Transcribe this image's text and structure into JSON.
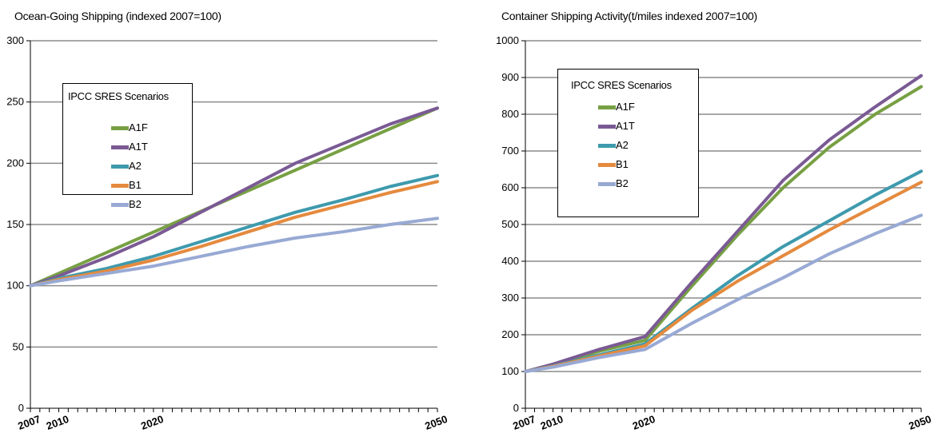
{
  "colors": {
    "A1F": "#77a043",
    "A1T": "#7a5a94",
    "A2": "#3e9aad",
    "B1": "#e58a3e",
    "B2": "#98a9d4"
  },
  "legend": {
    "title": "IPCC SRES Scenarios",
    "items": [
      "A1F",
      "A1T",
      "A2",
      "B1",
      "B2"
    ]
  },
  "chart_data": [
    {
      "type": "line",
      "title": "Ocean-Going Shipping (indexed 2007=100)",
      "xlabel": "",
      "ylabel": "",
      "xlim": [
        2007,
        2050
      ],
      "ylim": [
        0,
        300
      ],
      "yticks": [
        0,
        50,
        100,
        150,
        200,
        250,
        300
      ],
      "xtick_labels": [
        2007,
        2010,
        2020,
        2050
      ],
      "grid": true,
      "legend_position": "top-left",
      "series": [
        {
          "name": "A1F",
          "x": [
            2007,
            2050
          ],
          "y": [
            100,
            245
          ]
        },
        {
          "name": "A1T",
          "x": [
            2007,
            2010,
            2015,
            2020,
            2025,
            2030,
            2035,
            2040,
            2045,
            2050
          ],
          "y": [
            100,
            108,
            123,
            140,
            160,
            180,
            200,
            216,
            232,
            245
          ]
        },
        {
          "name": "A2",
          "x": [
            2007,
            2010,
            2015,
            2020,
            2025,
            2030,
            2035,
            2040,
            2045,
            2050
          ],
          "y": [
            100,
            106,
            114,
            124,
            136,
            148,
            160,
            170,
            181,
            190
          ]
        },
        {
          "name": "B1",
          "x": [
            2007,
            2010,
            2015,
            2020,
            2025,
            2030,
            2035,
            2040,
            2045,
            2050
          ],
          "y": [
            100,
            105,
            112,
            121,
            132,
            144,
            156,
            166,
            176,
            185
          ]
        },
        {
          "name": "B2",
          "x": [
            2007,
            2010,
            2015,
            2020,
            2025,
            2030,
            2035,
            2040,
            2045,
            2050
          ],
          "y": [
            100,
            104,
            110,
            116,
            124,
            132,
            139,
            144,
            150,
            155
          ]
        }
      ]
    },
    {
      "type": "line",
      "title": "Container Shipping Activity(t/miles indexed 2007=100)",
      "xlabel": "",
      "ylabel": "",
      "xlim": [
        2007,
        2050
      ],
      "ylim": [
        0,
        1000
      ],
      "yticks": [
        0,
        100,
        200,
        300,
        400,
        500,
        600,
        700,
        800,
        900,
        1000
      ],
      "xtick_labels": [
        2007,
        2010,
        2020,
        2050
      ],
      "grid": true,
      "legend_position": "top-left",
      "series": [
        {
          "name": "A1F",
          "x": [
            2007,
            2010,
            2015,
            2020,
            2025,
            2030,
            2035,
            2040,
            2045,
            2050
          ],
          "y": [
            100,
            118,
            155,
            185,
            330,
            470,
            600,
            710,
            800,
            875
          ]
        },
        {
          "name": "A1T",
          "x": [
            2007,
            2010,
            2015,
            2020,
            2025,
            2030,
            2035,
            2040,
            2045,
            2050
          ],
          "y": [
            100,
            120,
            160,
            195,
            340,
            480,
            620,
            730,
            820,
            905
          ]
        },
        {
          "name": "A2",
          "x": [
            2007,
            2010,
            2015,
            2020,
            2025,
            2030,
            2035,
            2040,
            2045,
            2050
          ],
          "y": [
            100,
            115,
            145,
            175,
            270,
            360,
            440,
            510,
            580,
            645
          ]
        },
        {
          "name": "B1",
          "x": [
            2007,
            2010,
            2015,
            2020,
            2025,
            2030,
            2035,
            2040,
            2045,
            2050
          ],
          "y": [
            100,
            114,
            142,
            170,
            265,
            345,
            415,
            485,
            550,
            615
          ]
        },
        {
          "name": "B2",
          "x": [
            2007,
            2010,
            2015,
            2020,
            2025,
            2030,
            2035,
            2040,
            2045,
            2050
          ],
          "y": [
            100,
            112,
            138,
            160,
            230,
            295,
            355,
            420,
            475,
            525
          ]
        }
      ]
    }
  ]
}
